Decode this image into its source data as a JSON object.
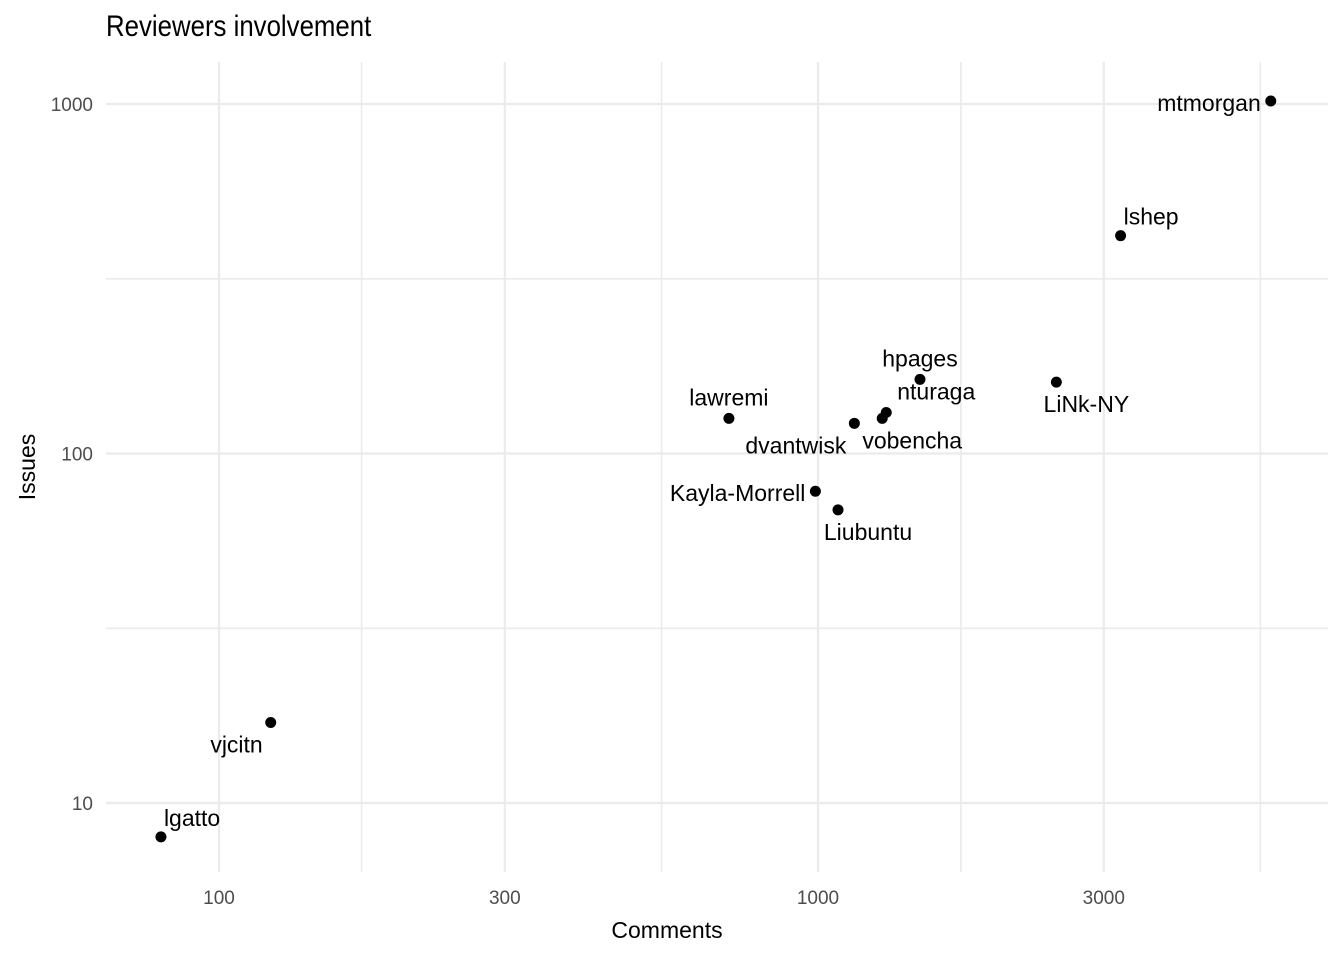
{
  "chart_data": {
    "type": "scatter",
    "title": "Reviewers involvement",
    "xlabel": "Comments",
    "ylabel": "Issues",
    "x_scale": "log10",
    "y_scale": "log10",
    "xlim": [
      68,
      6800
    ],
    "ylim": [
      7.5,
      1300
    ],
    "x_major_ticks": [
      100,
      300,
      1000,
      3000
    ],
    "x_tick_labels": [
      "100",
      "300",
      "1000",
      "3000"
    ],
    "x_minor_gridlines": [
      55,
      173,
      548,
      1732,
      5477
    ],
    "y_major_ticks": [
      10,
      100,
      1000
    ],
    "y_tick_labels": [
      "10",
      "100",
      "1000"
    ],
    "y_minor_gridlines": [
      31.6,
      316
    ],
    "grid": true,
    "points": [
      {
        "label": "mtmorgan",
        "x": 5700,
        "y": 1020,
        "label_side": "left"
      },
      {
        "label": "lshep",
        "x": 3200,
        "y": 420,
        "label_side": "above-right"
      },
      {
        "label": "hpages",
        "x": 1480,
        "y": 163,
        "label_side": "above"
      },
      {
        "label": "LiNk-NY",
        "x": 2500,
        "y": 160,
        "label_side": "below"
      },
      {
        "label": "nturaga",
        "x": 1300,
        "y": 131,
        "label_side": "right"
      },
      {
        "label": "vobencha",
        "x": 1280,
        "y": 126,
        "label_side": "below"
      },
      {
        "label": "dvantwisk",
        "x": 1150,
        "y": 122,
        "label_side": "below-left"
      },
      {
        "label": "lawremi",
        "x": 710,
        "y": 126,
        "label_side": "above"
      },
      {
        "label": "Kayla-Morrell",
        "x": 990,
        "y": 78,
        "label_side": "left"
      },
      {
        "label": "Liubuntu",
        "x": 1080,
        "y": 69,
        "label_side": "below"
      },
      {
        "label": "vjcitn",
        "x": 122,
        "y": 17,
        "label_side": "below-left"
      },
      {
        "label": "lgatto",
        "x": 80,
        "y": 8,
        "label_side": "above-right"
      }
    ]
  }
}
